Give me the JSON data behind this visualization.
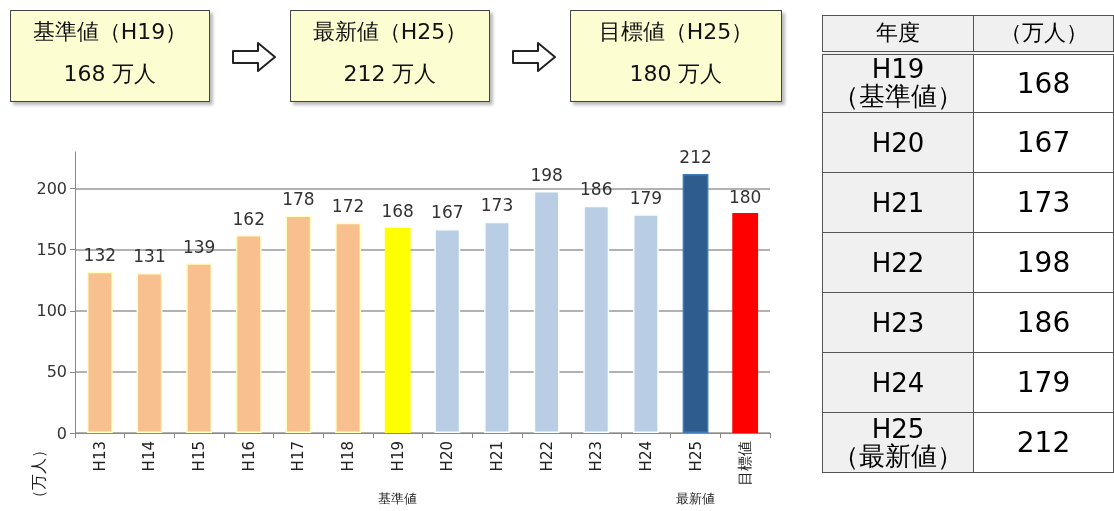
{
  "chart_data": [
    {
      "type": "bar",
      "ylabel": "（万人）",
      "categories": [
        "H13",
        "H14",
        "H15",
        "H16",
        "H17",
        "H18",
        "H19",
        "H20",
        "H21",
        "H22",
        "H23",
        "H24",
        "H25",
        "目標値"
      ],
      "values": [
        132,
        131,
        139,
        162,
        178,
        172,
        168,
        167,
        173,
        198,
        186,
        179,
        212,
        180
      ],
      "colors": [
        "#f8c08f",
        "#f8c08f",
        "#f8c08f",
        "#f8c08f",
        "#f8c08f",
        "#f8c08f",
        "#ffff00",
        "#b9cde5",
        "#b9cde5",
        "#b9cde5",
        "#b9cde5",
        "#b9cde5",
        "#2e5c8e",
        "#ff0000"
      ],
      "ylim": [
        0,
        230
      ],
      "yticks": [
        0,
        50,
        100,
        150,
        200
      ],
      "grid": "y",
      "data_labels": true,
      "annotations": [
        "基準値（H19）\n168 万人",
        "最新値（H25）\n212 万人",
        "目標値（H25）\n180 万人",
        "基準値",
        "最新値"
      ]
    },
    {
      "type": "other",
      "categories": [
        "H19\n（基準値）",
        "H20",
        "H21",
        "H22",
        "H23",
        "H24",
        "H25\n（最新値）"
      ],
      "values": [
        168,
        167,
        173,
        198,
        186,
        179,
        212
      ],
      "data_labels": true,
      "annotations": [
        "年度",
        "（万人）"
      ]
    }
  ]
}
